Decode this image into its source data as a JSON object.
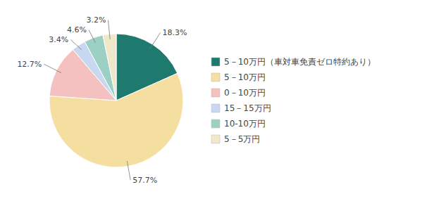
{
  "chart_data": {
    "type": "pie",
    "categories": [
      "5－10万円（車対車免責ゼロ特約あり）",
      "5－10万円",
      "0－10万円",
      "15－15万円",
      "10-10万円",
      "5－5万円"
    ],
    "values": [
      18.3,
      57.7,
      12.7,
      3.4,
      4.6,
      3.2
    ],
    "value_labels": [
      "18.3%",
      "57.7%",
      "12.7%",
      "3.4%",
      "4.6%",
      "3.2%"
    ],
    "colors": [
      "#1e7a6e",
      "#f5dfa0",
      "#f5c0c0",
      "#c8d8f0",
      "#9dd0c5",
      "#f0e8c8"
    ],
    "data_labels": true,
    "legend": "right"
  }
}
